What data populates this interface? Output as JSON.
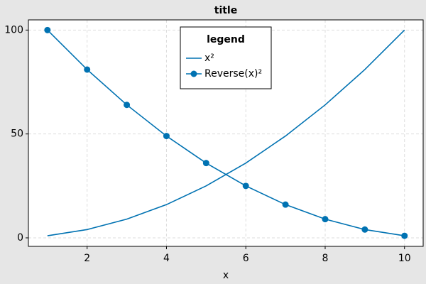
{
  "chart_data": {
    "type": "line",
    "title": "title",
    "x_label": "x",
    "legend_title": "legend",
    "legend_position": "top",
    "x": [
      1,
      2,
      3,
      4,
      5,
      6,
      7,
      8,
      9,
      10
    ],
    "series": [
      {
        "name": "x²",
        "color": "#0072b2",
        "markers": false,
        "values": [
          1,
          4,
          9,
          16,
          25,
          36,
          49,
          64,
          81,
          100
        ]
      },
      {
        "name": "Reverse(x)²",
        "color": "#0072b2",
        "markers": true,
        "values": [
          100,
          81,
          64,
          49,
          36,
          25,
          16,
          9,
          4,
          1
        ]
      }
    ],
    "xlim": [
      0.52,
      10.47
    ],
    "ylim": [
      -4.1,
      104.9
    ],
    "xticks": [
      2,
      4,
      6,
      8,
      10
    ],
    "yticks": [
      0,
      50,
      100
    ],
    "grid": true
  }
}
